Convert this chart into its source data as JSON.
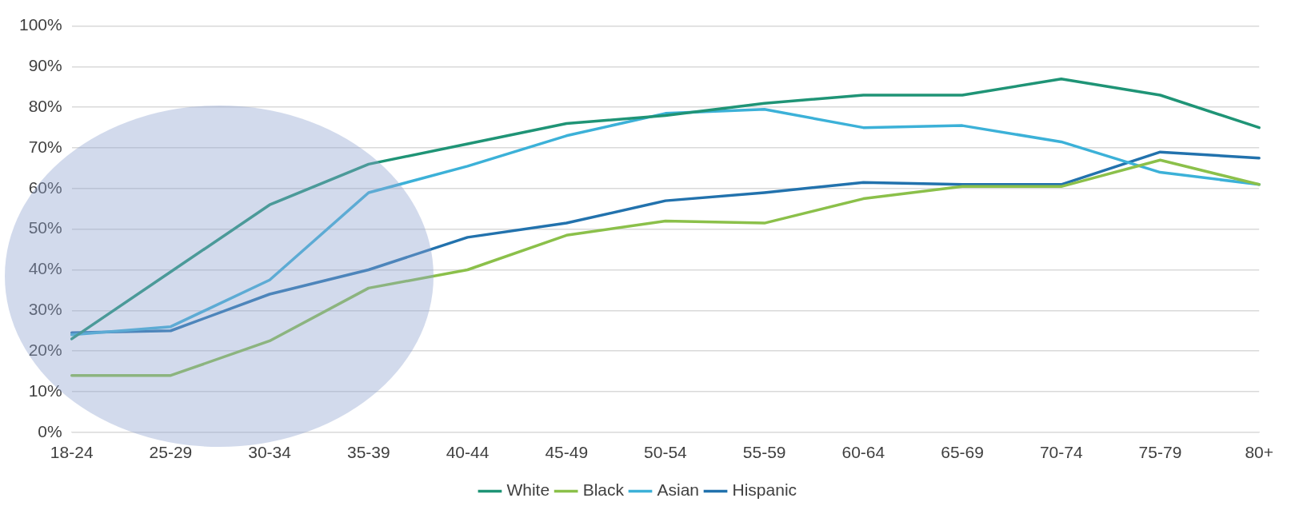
{
  "chart_data": {
    "type": "line",
    "categories": [
      "18-24",
      "25-29",
      "30-34",
      "35-39",
      "40-44",
      "45-49",
      "50-54",
      "55-59",
      "60-64",
      "65-69",
      "70-74",
      "75-79",
      "80+"
    ],
    "series": [
      {
        "name": "White",
        "color": "#1f9476",
        "values": [
          23,
          39.5,
          56,
          66,
          71,
          76,
          78,
          81,
          83,
          83,
          87,
          83,
          75
        ]
      },
      {
        "name": "Black",
        "color": "#8bc04a",
        "values": [
          14,
          14,
          22.5,
          35.5,
          40,
          48.5,
          52,
          51.5,
          57.5,
          60.5,
          60.5,
          67,
          61
        ]
      },
      {
        "name": "Asian",
        "color": "#3cb1d8",
        "values": [
          24,
          26,
          37.5,
          59,
          65.5,
          73,
          78.5,
          79.5,
          75,
          75.5,
          71.5,
          64,
          61
        ]
      },
      {
        "name": "Hispanic",
        "color": "#2272ad",
        "values": [
          24.5,
          25,
          34,
          40,
          48,
          51.5,
          57,
          59,
          61.5,
          61,
          61,
          69,
          67.5
        ]
      }
    ],
    "ylim": [
      0,
      100
    ],
    "yticks": [
      {
        "value": 0,
        "label": "0%"
      },
      {
        "value": 10,
        "label": "10%"
      },
      {
        "value": 20,
        "label": "20%"
      },
      {
        "value": 30,
        "label": "30%"
      },
      {
        "value": 40,
        "label": "40%"
      },
      {
        "value": 50,
        "label": "50%"
      },
      {
        "value": 60,
        "label": "60%"
      },
      {
        "value": 70,
        "label": "70%"
      },
      {
        "value": 80,
        "label": "80%"
      },
      {
        "value": 90,
        "label": "90%"
      },
      {
        "value": 100,
        "label": "100%"
      }
    ],
    "grid": "y",
    "legend": "bottom",
    "marker": "none",
    "line_style": "solid"
  }
}
